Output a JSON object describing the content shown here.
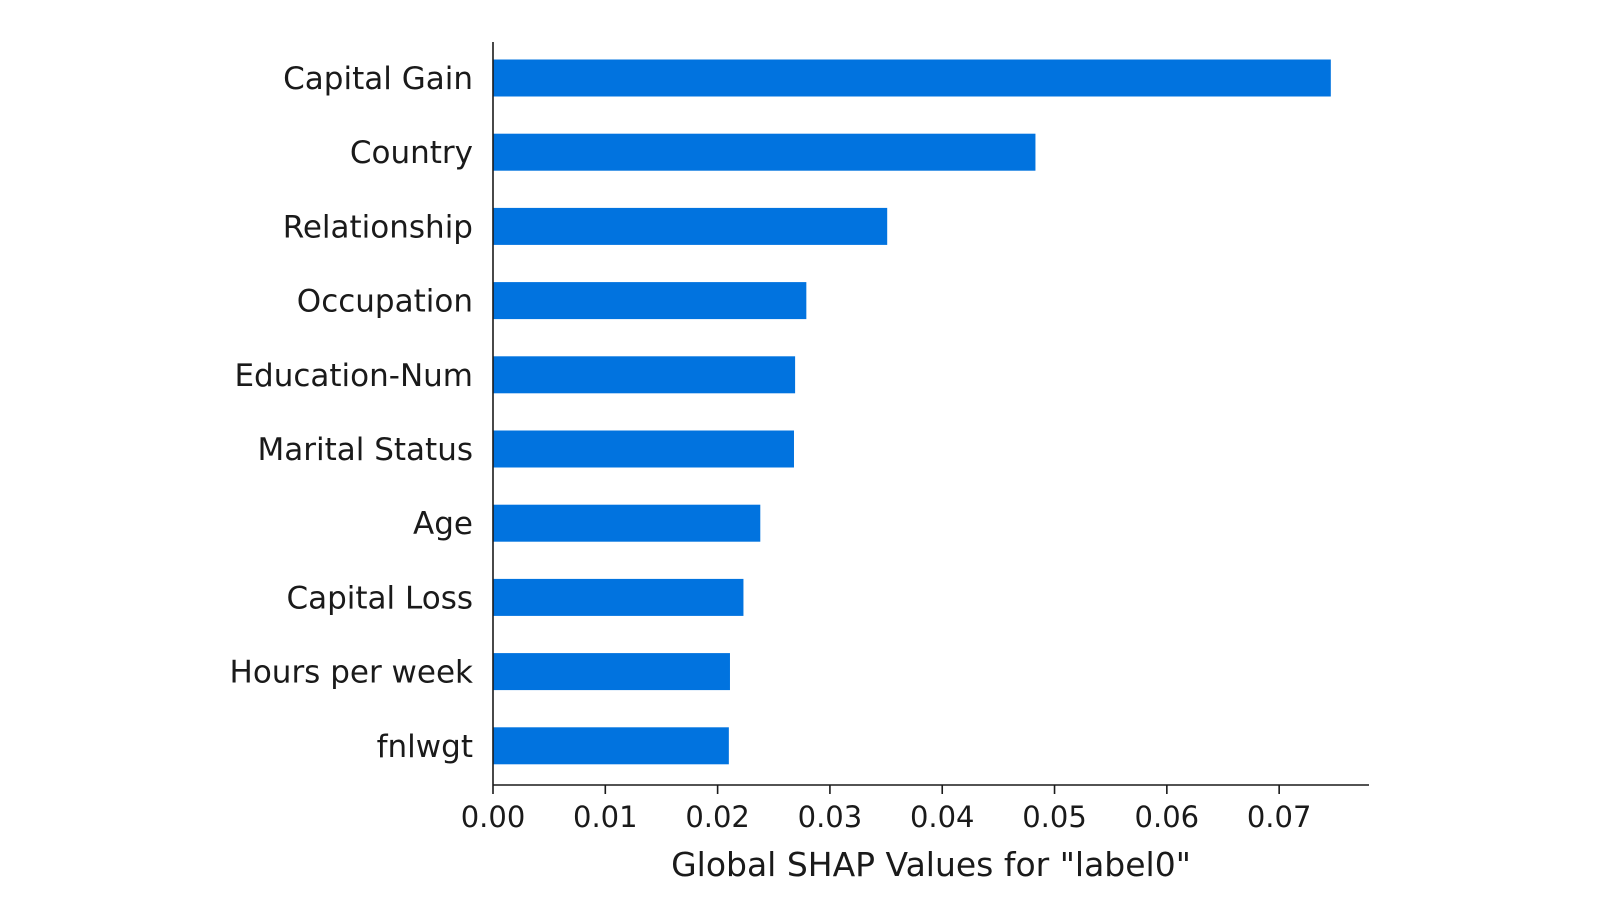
{
  "chart_data": {
    "type": "bar",
    "orientation": "horizontal",
    "categories": [
      "Capital Gain",
      "Country",
      "Relationship",
      "Occupation",
      "Education-Num",
      "Marital Status",
      "Age",
      "Capital Loss",
      "Hours per week",
      "fnlwgt"
    ],
    "values": [
      0.0746,
      0.0483,
      0.0351,
      0.0279,
      0.0269,
      0.0268,
      0.0238,
      0.0223,
      0.0211,
      0.021
    ],
    "title": "",
    "xlabel": "Global SHAP Values for \"label0\"",
    "ylabel": "",
    "xlim": [
      0,
      0.078
    ],
    "xticks": [
      0.0,
      0.01,
      0.02,
      0.03,
      0.04,
      0.05,
      0.06,
      0.07
    ],
    "xtick_labels": [
      "0.00",
      "0.01",
      "0.02",
      "0.03",
      "0.04",
      "0.05",
      "0.06",
      "0.07"
    ],
    "grid": false,
    "bar_color": "#0173df"
  }
}
